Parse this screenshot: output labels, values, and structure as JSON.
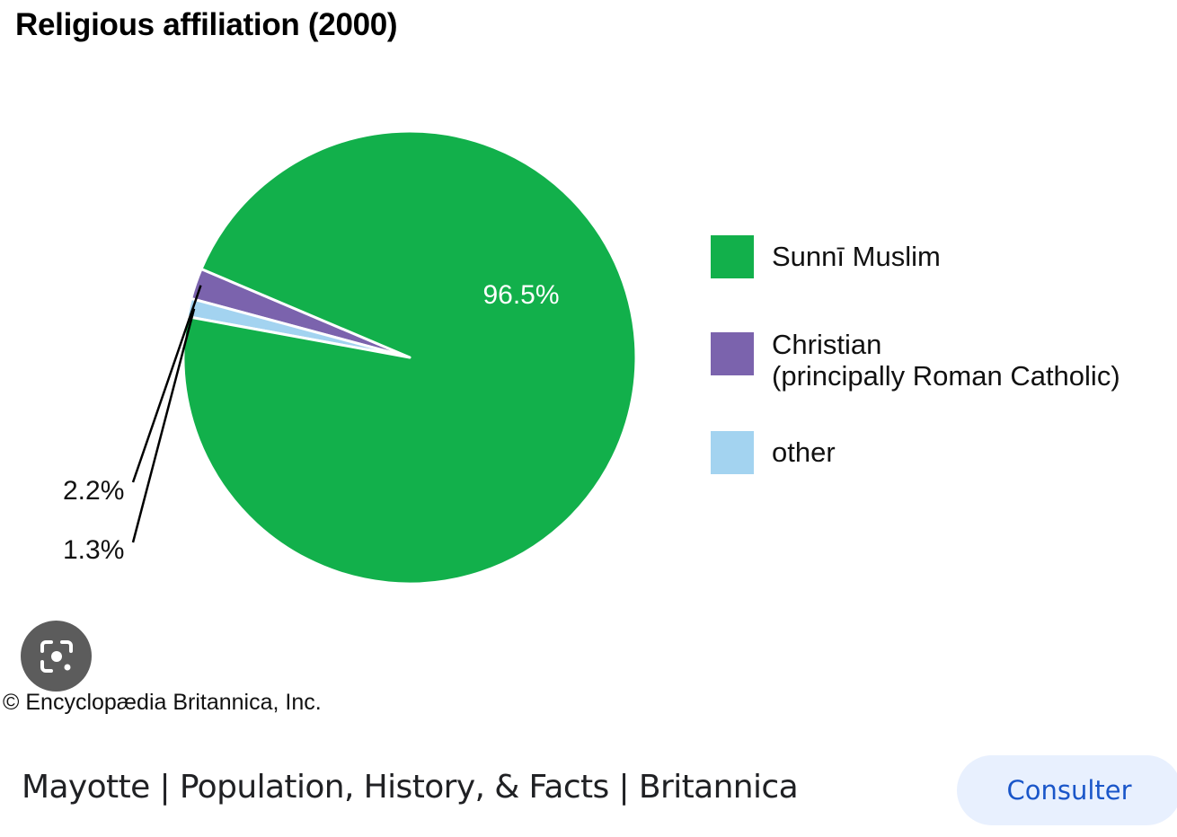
{
  "chart_data": {
    "type": "pie",
    "title": "Religious affiliation (2000)",
    "slices": [
      {
        "label": "Sunnī Muslim",
        "label_line2": "",
        "value": 96.5,
        "value_label": "96.5%",
        "color": "#12b04b"
      },
      {
        "label": "Christian",
        "label_line2": "(principally Roman Catholic)",
        "value": 2.2,
        "value_label": "2.2%",
        "color": "#7b63ad"
      },
      {
        "label": "other",
        "label_line2": "",
        "value": 1.3,
        "value_label": "1.3%",
        "color": "#a3d3f0"
      }
    ],
    "legend_position": "right"
  },
  "copyright": "© Encyclopædia Britannica, Inc.",
  "result": {
    "caption": "Mayotte | Population, History, & Facts | Britannica",
    "consult_label": "Consulter"
  },
  "icons": {
    "lens": "google-lens-icon"
  }
}
